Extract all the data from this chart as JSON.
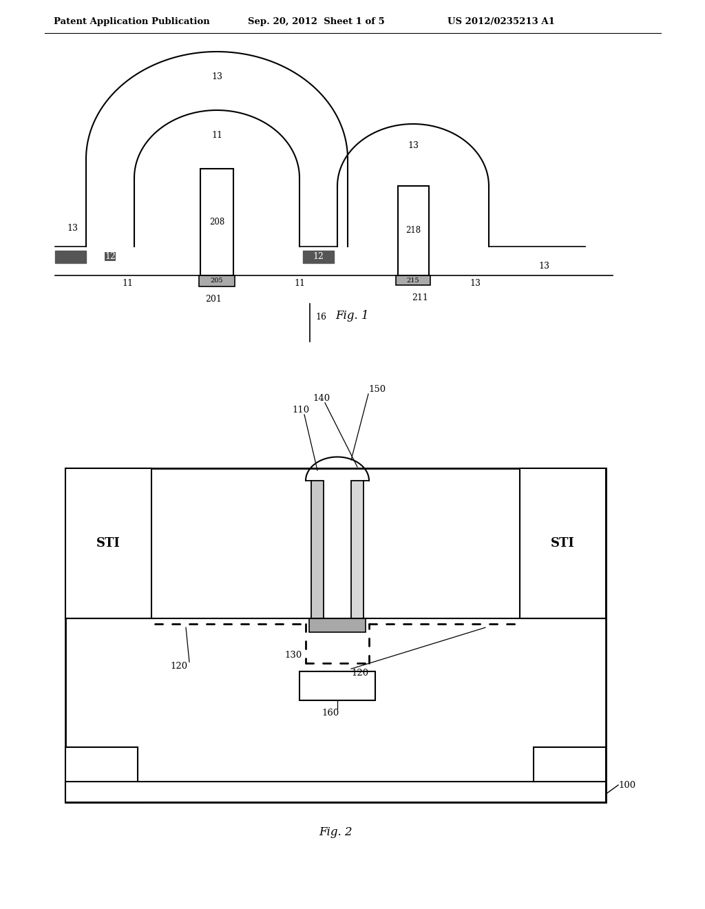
{
  "header_left": "Patent Application Publication",
  "header_mid": "Sep. 20, 2012  Sheet 1 of 5",
  "header_right": "US 2012/0235213 A1",
  "fig1_caption": "Fig. 1",
  "fig2_caption": "Fig. 2",
  "bg_color": "#ffffff",
  "line_color": "#000000"
}
